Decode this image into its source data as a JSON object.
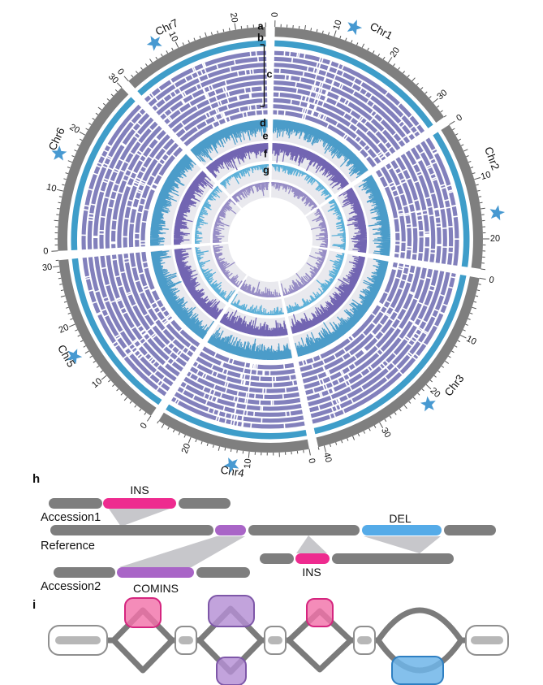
{
  "colors": {
    "pink": "#ee2b8f",
    "pink_soft": "#f173aa",
    "pink_border": "#d5257f",
    "purple": "#a965c7",
    "purple_soft": "#b48fd4",
    "purple_border": "#7e57a8",
    "blue": "#55abe8",
    "blue_soft": "#6fb5e9",
    "blue_border": "#2e7fc2",
    "bar_gray": "#7e7e7e",
    "connector": "#c7c7cb",
    "node_border": "#8f8f8f",
    "path_gray": "#7b7b7b",
    "star_blue": "#4799d1"
  },
  "chart_data": {
    "type": "circos",
    "track_bg": "#e9e9ee",
    "chromosomes": [
      {
        "name": "Chr1",
        "length_mb": 33,
        "ticks": [
          0,
          10,
          20,
          30
        ],
        "star_mb": 12.5
      },
      {
        "name": "Chr2",
        "length_mb": 25,
        "ticks": [
          0,
          10,
          20
        ],
        "star_mb": 16
      },
      {
        "name": "Chr3",
        "length_mb": 41,
        "ticks": [
          0,
          10,
          20,
          30,
          40
        ],
        "star_mb": 22
      },
      {
        "name": "Chr4",
        "length_mb": 26,
        "ticks": [
          0,
          10,
          20
        ],
        "star_mb": 12.5
      },
      {
        "name": "Chr5",
        "length_mb": 31,
        "ticks": [
          0,
          10,
          20,
          30
        ],
        "star_mb": 15.5
      },
      {
        "name": "Chr6",
        "length_mb": 30,
        "ticks": [
          0,
          10,
          20,
          30
        ],
        "star_mb": 15.5
      },
      {
        "name": "Chr7",
        "length_mb": 25,
        "ticks": [
          0,
          10,
          20
        ],
        "star_mb": 7
      }
    ],
    "tracks": [
      {
        "id": "a",
        "label": "a",
        "kind": "ideogram-ring",
        "color": "#7f7f7f"
      },
      {
        "id": "b",
        "label": "b",
        "kind": "ring",
        "color": "#3e9dc9"
      },
      {
        "id": "c",
        "label": "c",
        "kind": "ring-stack",
        "rings": 11,
        "color": "#8280bc"
      },
      {
        "id": "d",
        "label": "d",
        "kind": "histogram",
        "color": "#4b9cc9"
      },
      {
        "id": "e",
        "label": "e",
        "kind": "histogram",
        "color": "#7265b2"
      },
      {
        "id": "f",
        "label": "f",
        "kind": "histogram",
        "color": "#5cb0d8"
      },
      {
        "id": "g",
        "label": "g",
        "kind": "histogram",
        "color": "#968cc5"
      }
    ]
  },
  "panel_h": {
    "label": "h",
    "row_labels": [
      "Accession1",
      "Reference",
      "Accession2"
    ],
    "sv_labels": {
      "ins_top": "INS",
      "del": "DEL",
      "ins_bottom": "INS",
      "comins": "COMINS"
    }
  },
  "panel_i": {
    "label": "i"
  }
}
